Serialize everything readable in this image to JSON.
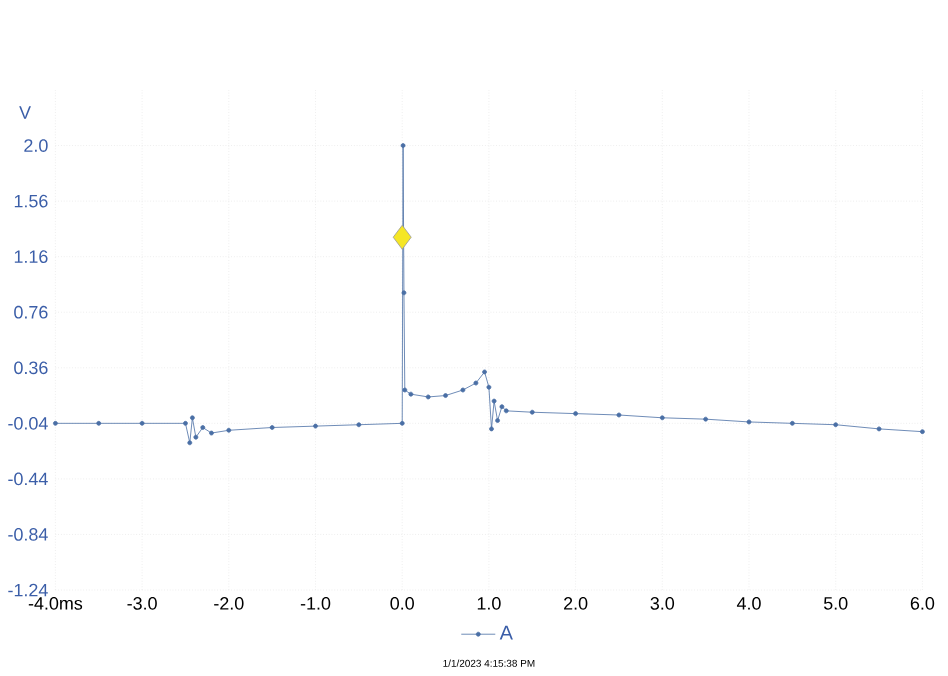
{
  "chart_data": {
    "type": "line",
    "ylabel": "V",
    "xlim": [
      -4,
      6
    ],
    "ylim": [
      -1.24,
      2.36
    ],
    "xticks": [
      {
        "value": -4,
        "label": "-4.0ms"
      },
      {
        "value": -3,
        "label": "-3.0"
      },
      {
        "value": -2,
        "label": "-2.0"
      },
      {
        "value": -1,
        "label": "-1.0"
      },
      {
        "value": 0,
        "label": "0.0"
      },
      {
        "value": 1,
        "label": "1.0"
      },
      {
        "value": 2,
        "label": "2.0"
      },
      {
        "value": 3,
        "label": "3.0"
      },
      {
        "value": 4,
        "label": "4.0"
      },
      {
        "value": 5,
        "label": "5.0"
      },
      {
        "value": 6,
        "label": "6.0"
      }
    ],
    "yticks": [
      -1.24,
      -0.84,
      -0.44,
      -0.04,
      0.36,
      0.76,
      1.16,
      1.56,
      {
        "value": 1.96,
        "label": "2.0"
      }
    ],
    "grid": true,
    "legend": "bottom",
    "marker": "circle",
    "line_style": "solid",
    "annotations": [
      "1/1/2023 4:15:38 PM"
    ],
    "series": [
      {
        "name": "A",
        "color": "#4a6fa5",
        "x": [
          -4,
          -3.5,
          -3,
          -2.5,
          -2.45,
          -2.42,
          -2.38,
          -2.3,
          -2.2,
          -2,
          -1.5,
          -1,
          -0.5,
          0,
          0.01,
          0.02,
          0.03,
          0.1,
          0.3,
          0.5,
          0.7,
          0.85,
          0.95,
          1.0,
          1.03,
          1.06,
          1.1,
          1.15,
          1.2,
          1.5,
          2,
          2.5,
          3,
          3.5,
          4,
          4.5,
          5,
          5.5,
          6
        ],
        "values": [
          -0.04,
          -0.04,
          -0.04,
          -0.04,
          -0.18,
          0.0,
          -0.14,
          -0.07,
          -0.11,
          -0.09,
          -0.07,
          -0.06,
          -0.05,
          -0.04,
          1.96,
          0.9,
          0.2,
          0.17,
          0.15,
          0.16,
          0.2,
          0.25,
          0.33,
          0.22,
          -0.08,
          0.12,
          -0.02,
          0.08,
          0.05,
          0.04,
          0.03,
          0.02,
          0.0,
          -0.01,
          -0.03,
          -0.04,
          -0.05,
          -0.08,
          -0.1
        ]
      },
      {
        "type": "scatter",
        "marker": "diamond",
        "color": "#f5e625",
        "x": [
          0
        ],
        "values": [
          1.3
        ]
      }
    ]
  }
}
